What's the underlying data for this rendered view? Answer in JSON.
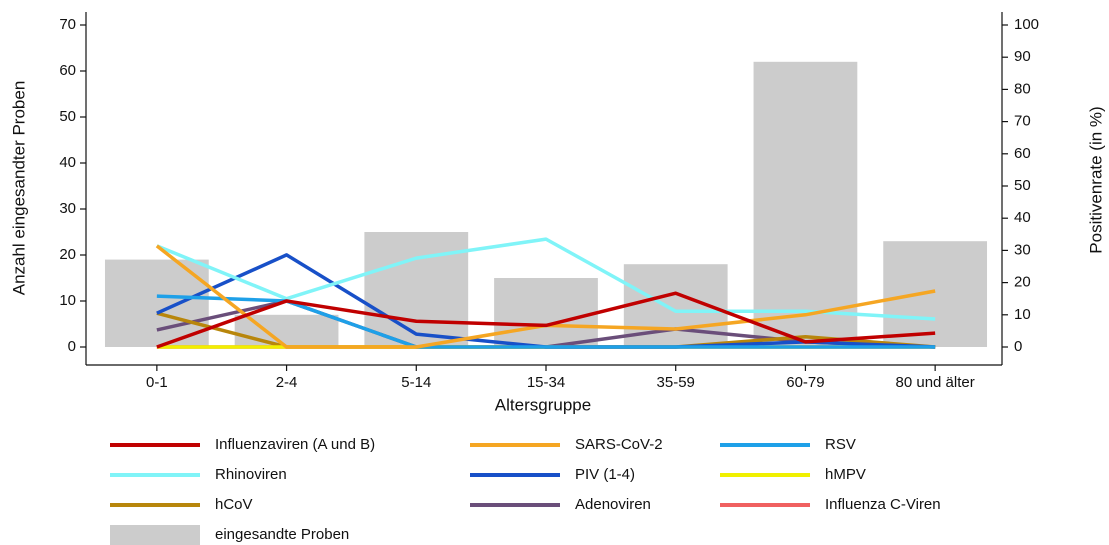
{
  "chart_data": {
    "type": "combo",
    "x_label": "Altersgruppe",
    "y_label": "Anzahl eingesandter Proben",
    "y2_label": "Positivenrate (in %)",
    "categories": [
      "0-1",
      "2-4",
      "5-14",
      "15-34",
      "35-59",
      "60-79",
      "80 und älter"
    ],
    "ylim": [
      0,
      70
    ],
    "yticks": [
      0,
      10,
      20,
      30,
      40,
      50,
      60,
      70
    ],
    "y2lim": [
      0,
      100
    ],
    "y2ticks": [
      0,
      10,
      20,
      30,
      40,
      50,
      60,
      70,
      80,
      90,
      100
    ],
    "series": [
      {
        "name": "Influenzaviren (A und B)",
        "type": "line",
        "axis": "y2",
        "color": "#c00000",
        "values": [
          0,
          14.3,
          8,
          6.7,
          16.7,
          1.6,
          4.3
        ]
      },
      {
        "name": "SARS-CoV-2",
        "type": "line",
        "axis": "y2",
        "color": "#f5a623",
        "values": [
          31.4,
          0,
          0,
          6.7,
          5.6,
          10,
          17.4
        ]
      },
      {
        "name": "RSV",
        "type": "line",
        "axis": "y2",
        "color": "#1ea0e8",
        "values": [
          15.8,
          14.3,
          0,
          0,
          0,
          0,
          0
        ]
      },
      {
        "name": "Rhinoviren",
        "type": "line",
        "axis": "y2",
        "color": "#80f4f8",
        "values": [
          31.4,
          15,
          27.6,
          33.5,
          11.1,
          11.1,
          8.7
        ]
      },
      {
        "name": "PIV (1-4)",
        "type": "line",
        "axis": "y2",
        "color": "#1850c8",
        "values": [
          10.5,
          28.6,
          4,
          0,
          0,
          1.6,
          0
        ]
      },
      {
        "name": "hMPV",
        "type": "line",
        "axis": "y2",
        "color": "#f0f000",
        "values": [
          0,
          0,
          0,
          0,
          0,
          0,
          0
        ]
      },
      {
        "name": "hCoV",
        "type": "line",
        "axis": "y2",
        "color": "#b8860b",
        "values": [
          10.5,
          0,
          0,
          0,
          0,
          3.2,
          0
        ]
      },
      {
        "name": "Adenoviren",
        "type": "line",
        "axis": "y2",
        "color": "#6a4e7a",
        "values": [
          5.3,
          14.3,
          0,
          0,
          5.6,
          1.6,
          0
        ]
      },
      {
        "name": "Influenza C-Viren",
        "type": "line",
        "axis": "y2",
        "color": "#f06060",
        "values": [
          0,
          0,
          0,
          0,
          0,
          0,
          0
        ]
      },
      {
        "name": "eingesandte Proben",
        "type": "bar",
        "axis": "y",
        "color": "#cccccc",
        "values": [
          19,
          7,
          25,
          15,
          18,
          62,
          23
        ]
      }
    ]
  }
}
